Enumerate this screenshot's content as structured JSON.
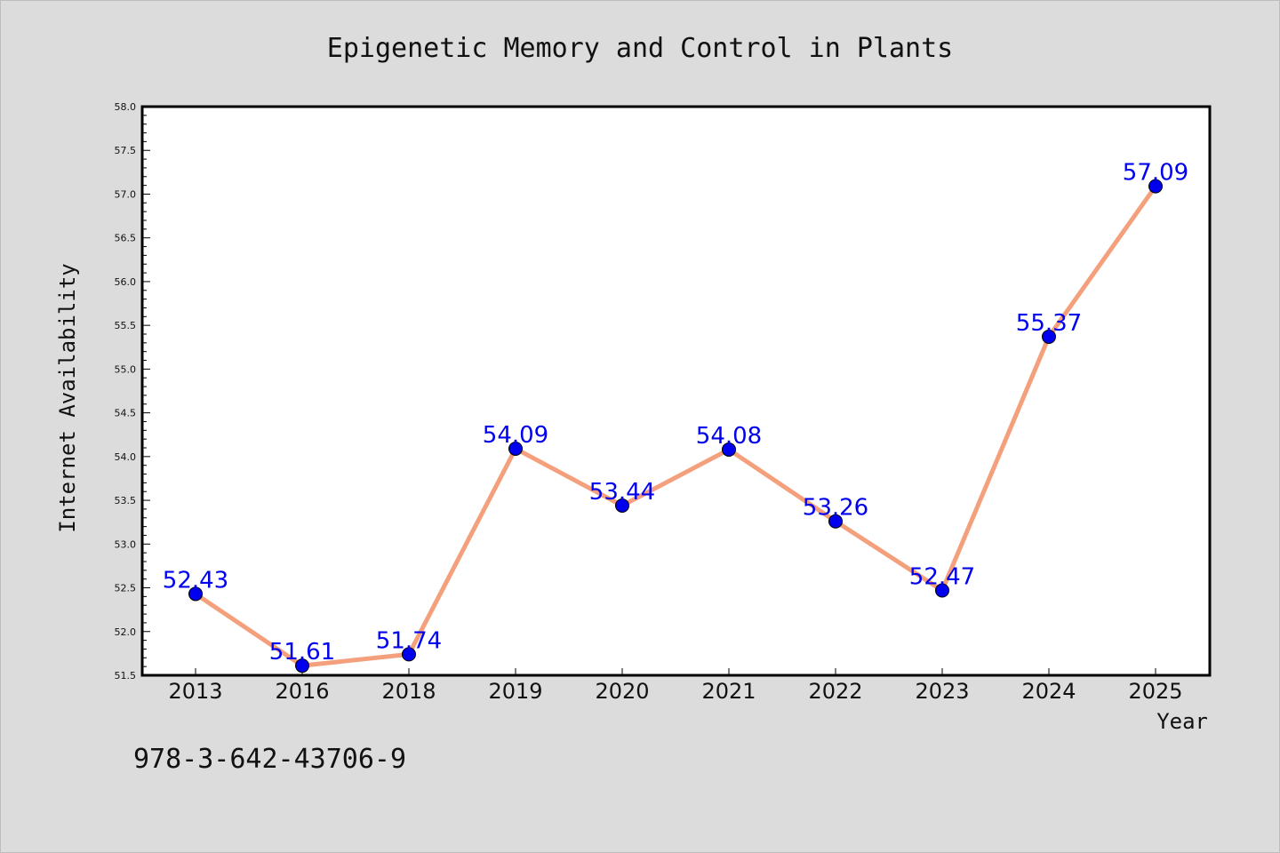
{
  "chart_data": {
    "type": "line",
    "title": "Epigenetic Memory and Control in Plants",
    "xlabel": "Year",
    "ylabel": "Internet Availability",
    "categories": [
      "2013",
      "2016",
      "2018",
      "2019",
      "2020",
      "2021",
      "2022",
      "2023",
      "2024",
      "2025"
    ],
    "series": [
      {
        "values": [
          52.43,
          51.61,
          51.74,
          54.09,
          53.44,
          54.08,
          53.26,
          52.47,
          55.37,
          57.09
        ],
        "labels": [
          "52.43",
          "51.61",
          "51.74",
          "54.09",
          "53.44",
          "54.08",
          "53.26",
          "52.47",
          "55.37",
          "57.09"
        ],
        "line_color": "#f4a07c",
        "marker_color": "#0000ee"
      }
    ],
    "ylim": [
      51.5,
      58.0
    ],
    "yticks": [
      51.5,
      52.0,
      52.5,
      53.0,
      53.5,
      54.0,
      54.5,
      55.0,
      55.5,
      56.0,
      56.5,
      57.0,
      57.5,
      58.0
    ],
    "ytick_labels": [
      "51.5",
      "52.0",
      "52.5",
      "53.0",
      "53.5",
      "54.0",
      "54.5",
      "55.0",
      "55.5",
      "56.0",
      "56.5",
      "57.0",
      "57.5",
      "58.0"
    ],
    "grid": false,
    "legend": "none"
  },
  "footer": {
    "isbn": "978-3-642-43706-9"
  }
}
